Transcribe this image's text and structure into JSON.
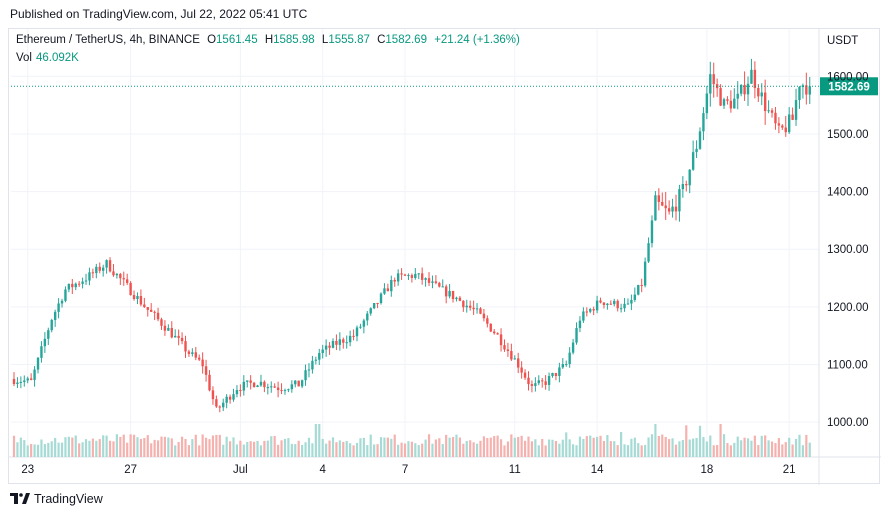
{
  "header": {
    "published": "Published on TradingView.com, Jul 22, 2022 05:41 UTC"
  },
  "legend": {
    "symbol": "Ethereum / TetherUS, 4h, BINANCE",
    "open_label": "O",
    "open": "1561.45",
    "high_label": "H",
    "high": "1585.98",
    "low_label": "L",
    "low": "1555.87",
    "close_label": "C",
    "close": "1582.69",
    "change": "+21.24 (+1.36%)",
    "vol_label": "Vol",
    "vol": "46.092K"
  },
  "footer": {
    "brand": "TradingView",
    "logo_icon": "tradingview-logo-icon"
  },
  "colors": {
    "up": "#26a69a",
    "down": "#ef5350",
    "up_vol": "#a6dbd5",
    "down_vol": "#f5b1ae",
    "last_price_bg": "#089981",
    "grid": "#f0f3fa"
  },
  "chart_data": {
    "type": "candlestick",
    "x_tick_labels": [
      "23",
      "27",
      "Jul",
      "4",
      "7",
      "11",
      "14",
      "18",
      "21"
    ],
    "y_axis_label": "USDT",
    "y_tick_labels": [
      "1000.00",
      "1100.00",
      "1200.00",
      "1300.00",
      "1400.00",
      "1500.00",
      "1600.00"
    ],
    "ylim": [
      950,
      1630
    ],
    "last_price": 1582.69,
    "last_price_label": "1582.69",
    "waypoints": [
      [
        0,
        1075
      ],
      [
        6,
        1070
      ],
      [
        12,
        1180
      ],
      [
        16,
        1230
      ],
      [
        22,
        1250
      ],
      [
        28,
        1275
      ],
      [
        34,
        1235
      ],
      [
        40,
        1195
      ],
      [
        46,
        1160
      ],
      [
        52,
        1120
      ],
      [
        56,
        1100
      ],
      [
        60,
        1020
      ],
      [
        66,
        1060
      ],
      [
        72,
        1070
      ],
      [
        78,
        1060
      ],
      [
        84,
        1065
      ],
      [
        90,
        1120
      ],
      [
        96,
        1140
      ],
      [
        100,
        1150
      ],
      [
        106,
        1200
      ],
      [
        112,
        1250
      ],
      [
        118,
        1255
      ],
      [
        124,
        1235
      ],
      [
        130,
        1215
      ],
      [
        136,
        1190
      ],
      [
        142,
        1150
      ],
      [
        148,
        1100
      ],
      [
        152,
        1060
      ],
      [
        156,
        1070
      ],
      [
        162,
        1100
      ],
      [
        166,
        1180
      ],
      [
        172,
        1210
      ],
      [
        180,
        1200
      ],
      [
        184,
        1240
      ],
      [
        188,
        1380
      ],
      [
        192,
        1360
      ],
      [
        196,
        1400
      ],
      [
        200,
        1480
      ],
      [
        204,
        1600
      ],
      [
        208,
        1550
      ],
      [
        212,
        1560
      ],
      [
        216,
        1605
      ],
      [
        220,
        1550
      ],
      [
        224,
        1500
      ],
      [
        228,
        1525
      ],
      [
        230,
        1590
      ],
      [
        232,
        1582.69
      ]
    ],
    "volume_spikes": [
      [
        88,
        2.0
      ],
      [
        89,
        1.8
      ],
      [
        161,
        1.8
      ],
      [
        177,
        2.0
      ],
      [
        187,
        1.9
      ],
      [
        196,
        1.8
      ],
      [
        200,
        1.8
      ],
      [
        206,
        2.0
      ],
      [
        211,
        1.7
      ]
    ]
  }
}
